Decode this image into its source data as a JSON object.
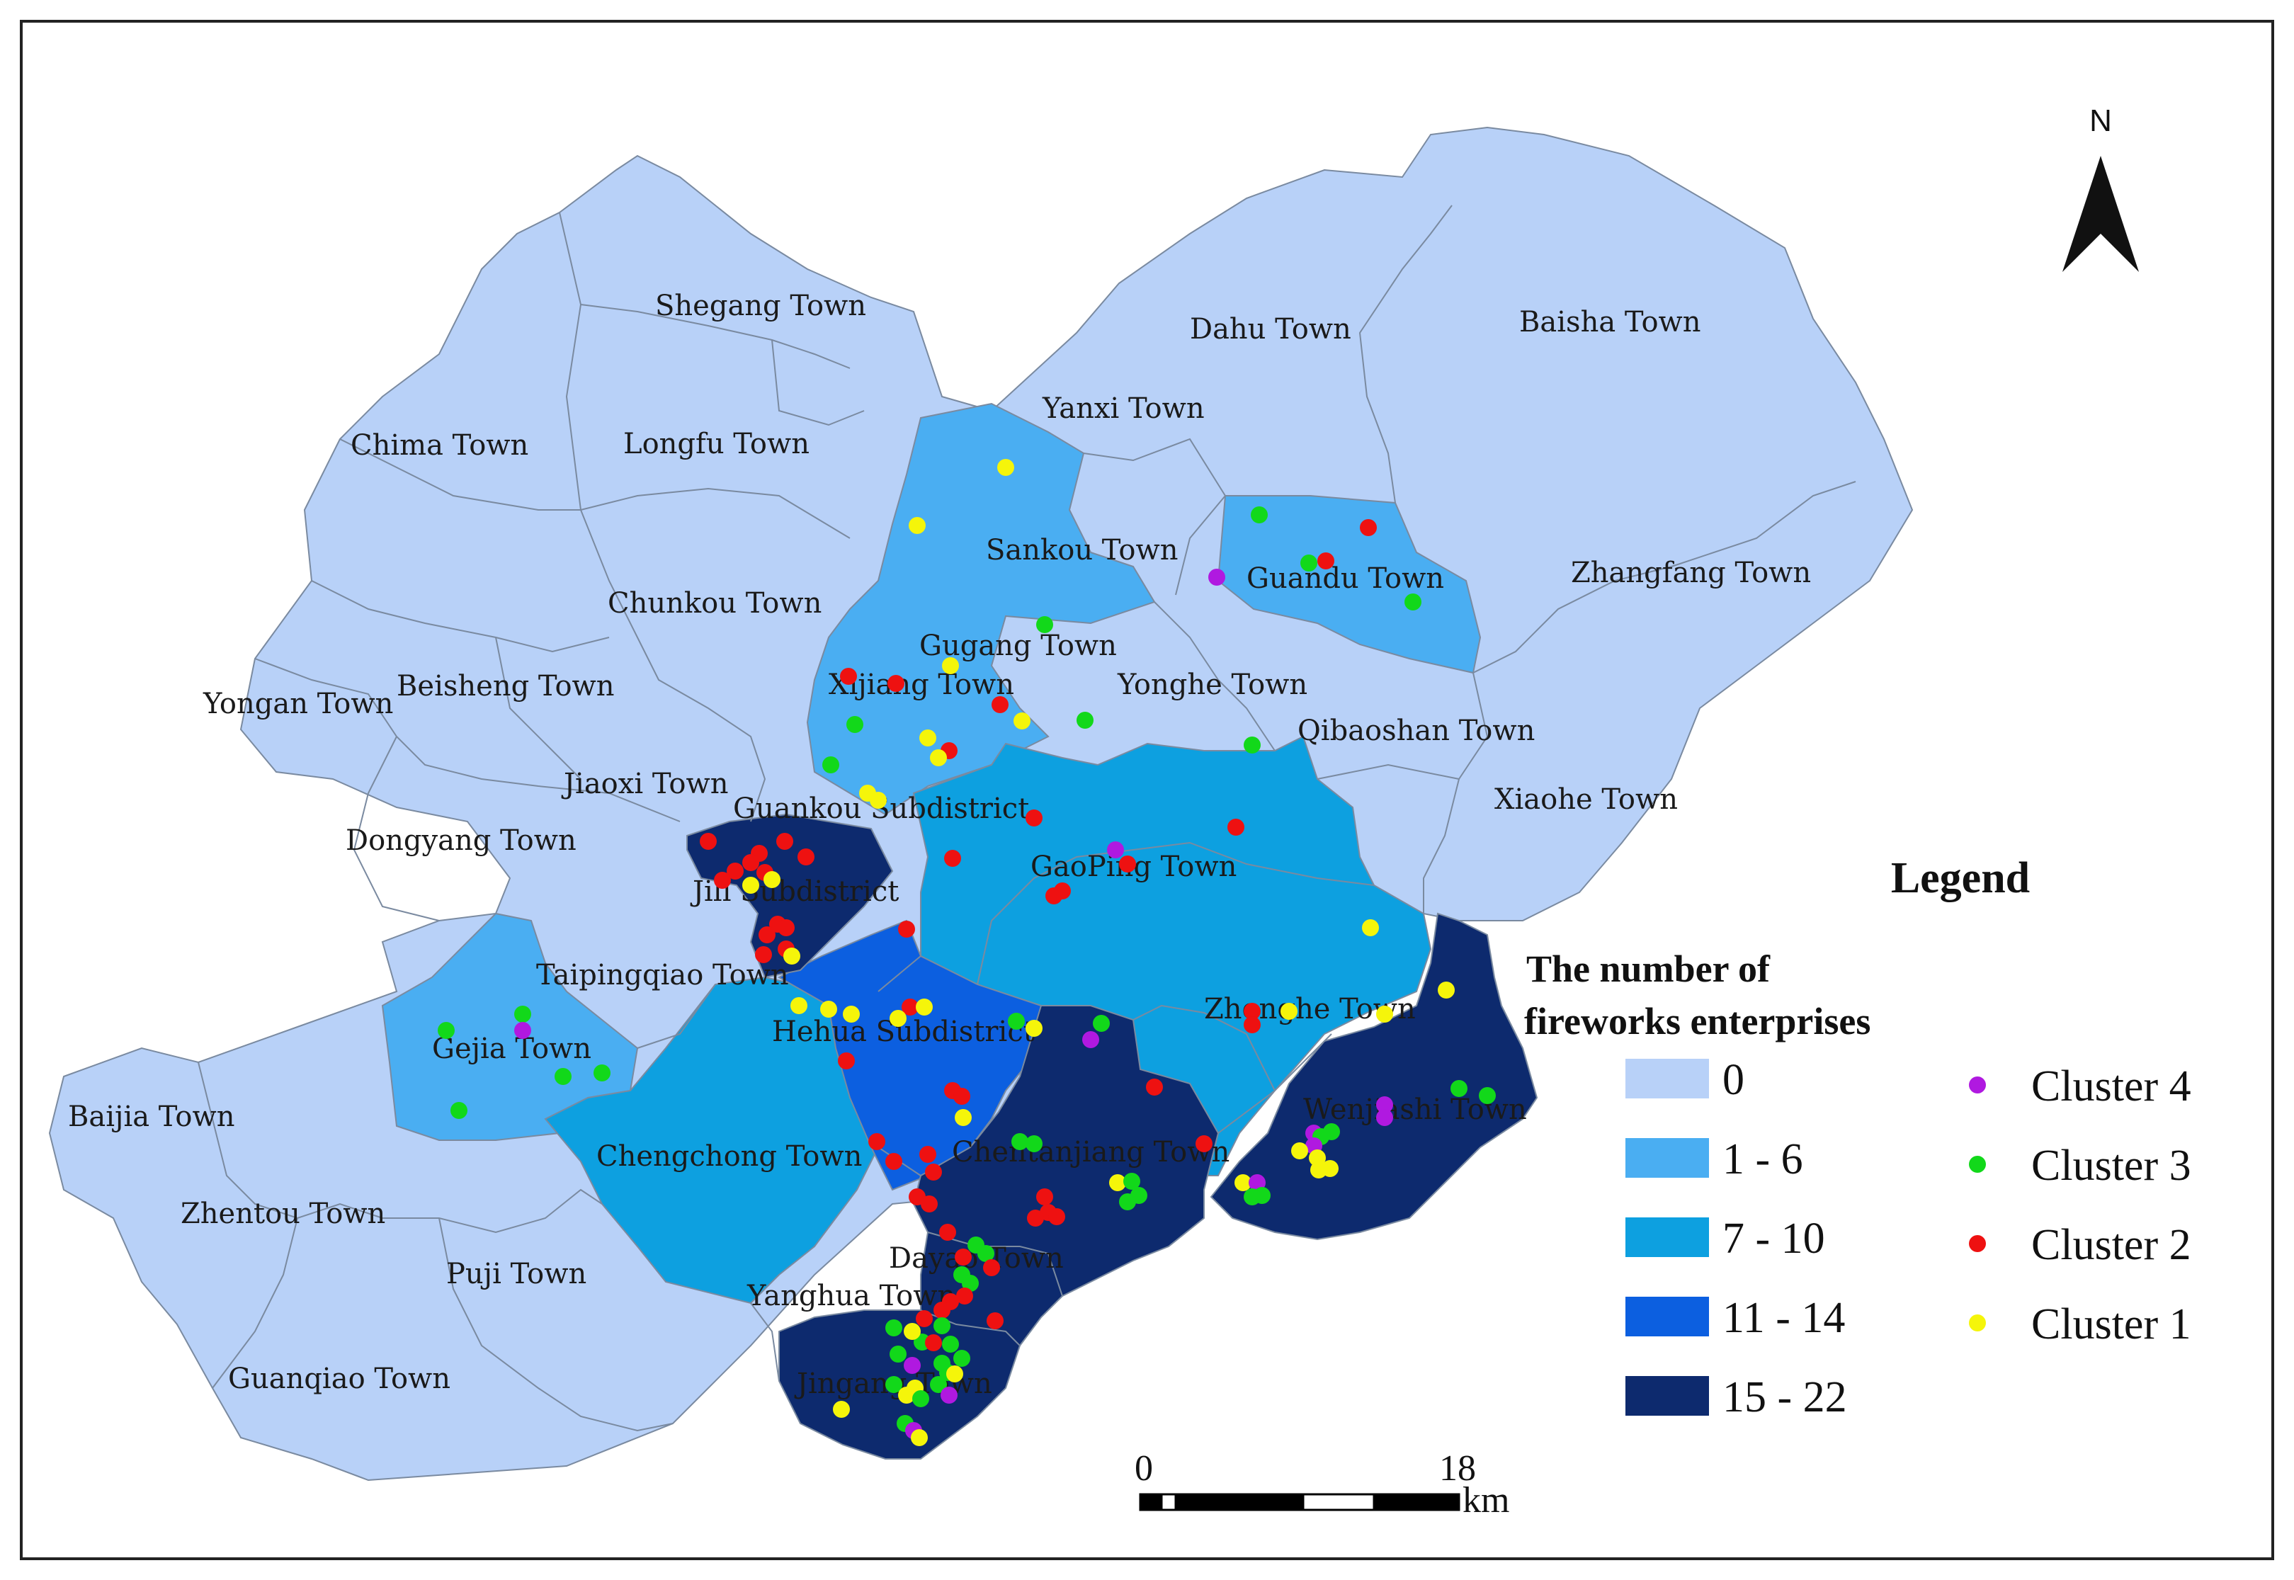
{
  "colors": {
    "class_0": "#b8d1f8",
    "class_1_6": "#4aaef2",
    "class_7_10": "#0da0e0",
    "class_11_14": "#0c5fe0",
    "class_15_22": "#0d2a6e",
    "cluster_4": "#b019e0",
    "cluster_3": "#12d81a",
    "cluster_2": "#ee1111",
    "cluster_1": "#f5f50a"
  },
  "north_label": "N",
  "legend": {
    "title": "Legend",
    "subtitle_line1": "The number of",
    "subtitle_line2": "fireworks enterprises",
    "classes": [
      {
        "label": "0",
        "color": "#b8d1f8"
      },
      {
        "label": "1 - 6",
        "color": "#4aaef2"
      },
      {
        "label": "7 - 10",
        "color": "#0da0e0"
      },
      {
        "label": "11 - 14",
        "color": "#0c5fe0"
      },
      {
        "label": "15 - 22",
        "color": "#0d2a6e"
      }
    ],
    "clusters": [
      {
        "label": "Cluster 4",
        "color": "#b019e0"
      },
      {
        "label": "Cluster 3",
        "color": "#12d81a"
      },
      {
        "label": "Cluster 2",
        "color": "#ee1111"
      },
      {
        "label": "Cluster 1",
        "color": "#f5f50a"
      }
    ]
  },
  "scale_bar": {
    "start": "0",
    "end": "18",
    "unit": "km"
  },
  "towns": [
    {
      "name": "Shegang Town",
      "class": "0"
    },
    {
      "name": "Dahu Town",
      "class": "0"
    },
    {
      "name": "Baisha Town",
      "class": "0"
    },
    {
      "name": "Yanxi Town",
      "class": "0"
    },
    {
      "name": "Chima Town",
      "class": "0"
    },
    {
      "name": "Longfu Town",
      "class": "0"
    },
    {
      "name": "Sankou Town",
      "class": "1 - 6"
    },
    {
      "name": "Guandu Town",
      "class": "1 - 6"
    },
    {
      "name": "Zhangfang Town",
      "class": "0"
    },
    {
      "name": "Chunkou Town",
      "class": "0"
    },
    {
      "name": "Gugang Town",
      "class": "1 - 6"
    },
    {
      "name": "Xijiang Town",
      "class": "1 - 6"
    },
    {
      "name": "Yonghe Town",
      "class": "0"
    },
    {
      "name": "Yongan Town",
      "class": "0"
    },
    {
      "name": "Beisheng Town",
      "class": "0"
    },
    {
      "name": "Qibaoshan Town",
      "class": "0"
    },
    {
      "name": "Jiaoxi Town",
      "class": "0"
    },
    {
      "name": "Guankou Subdistrict",
      "class": "1 - 6"
    },
    {
      "name": "Xiaohe Town",
      "class": "0"
    },
    {
      "name": "Dongyang Town",
      "class": "0"
    },
    {
      "name": "GaoPing Town",
      "class": "7 - 10"
    },
    {
      "name": "Jili Subdistrict",
      "class": "15 - 22"
    },
    {
      "name": "Taipingqiao Town",
      "class": "0"
    },
    {
      "name": "Zhonghe Town",
      "class": "7 - 10"
    },
    {
      "name": "Gejia Town",
      "class": "1 - 6"
    },
    {
      "name": "Hehua Subdistrict",
      "class": "11 - 14"
    },
    {
      "name": "Baijia Town",
      "class": "0"
    },
    {
      "name": "Wenjiashi Town",
      "class": "15 - 22"
    },
    {
      "name": "Chengchong Town",
      "class": "7 - 10"
    },
    {
      "name": "Chentanjiang Town",
      "class": "15 - 22"
    },
    {
      "name": "Zhentou Town",
      "class": "0"
    },
    {
      "name": "Dayao Town",
      "class": "15 - 22"
    },
    {
      "name": "Puji Town",
      "class": "0"
    },
    {
      "name": "Yanghua Town",
      "class": "0"
    },
    {
      "name": "Guanqiao Town",
      "class": "0"
    },
    {
      "name": "Jingang Town",
      "class": "15 - 22"
    }
  ]
}
